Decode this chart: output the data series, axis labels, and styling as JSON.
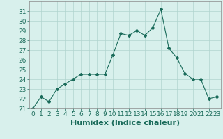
{
  "x": [
    0,
    1,
    2,
    3,
    4,
    5,
    6,
    7,
    8,
    9,
    10,
    11,
    12,
    13,
    14,
    15,
    16,
    17,
    18,
    19,
    20,
    21,
    22,
    23
  ],
  "y": [
    21.0,
    22.2,
    21.7,
    23.0,
    23.5,
    24.0,
    24.5,
    24.5,
    24.5,
    24.5,
    26.5,
    28.7,
    28.5,
    29.0,
    28.5,
    29.3,
    31.2,
    27.2,
    26.2,
    24.6,
    24.0,
    24.0,
    22.0,
    22.2
  ],
  "line_color": "#1a6b5a",
  "marker": "D",
  "marker_size": 2,
  "bg_color": "#d8f0ec",
  "grid_color": "#b0d4ce",
  "xlabel": "Humidex (Indice chaleur)",
  "ylim": [
    21,
    32
  ],
  "xlim": [
    -0.5,
    23.5
  ],
  "yticks": [
    21,
    22,
    23,
    24,
    25,
    26,
    27,
    28,
    29,
    30,
    31
  ],
  "xticks": [
    0,
    1,
    2,
    3,
    4,
    5,
    6,
    7,
    8,
    9,
    10,
    11,
    12,
    13,
    14,
    15,
    16,
    17,
    18,
    19,
    20,
    21,
    22,
    23
  ],
  "tick_label_size": 6.5,
  "xlabel_size": 8,
  "xlabel_bold": true
}
